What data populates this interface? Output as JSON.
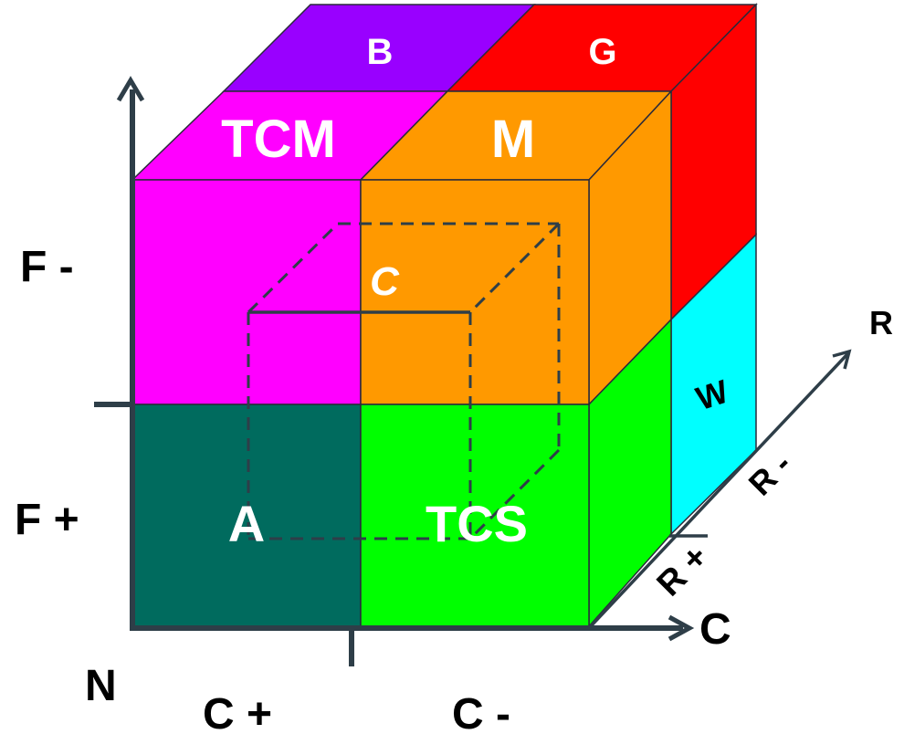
{
  "colors": {
    "tcm": "#ff00ff",
    "m": "#ff9900",
    "a": "#006b5e",
    "tcs": "#00ff00",
    "b": "#9900ff",
    "g": "#ff0000",
    "w": "#00ffff",
    "axis": "#2e3e48"
  },
  "regions": {
    "top_back_left": "B",
    "top_back_right": "G",
    "top_front_left": "TCM",
    "top_front_right": "M",
    "center": "C",
    "front_bottom_left": "A",
    "front_bottom_right": "TCS",
    "side_bottom": "W"
  },
  "axes": {
    "vertical_top": "F -",
    "vertical_bottom": "F +",
    "origin": "N",
    "horizontal_left": "C +",
    "horizontal_right": "C -",
    "horizontal_arrow": "C",
    "depth_arrow": "R",
    "depth_near": "R +",
    "depth_far": "R -"
  }
}
